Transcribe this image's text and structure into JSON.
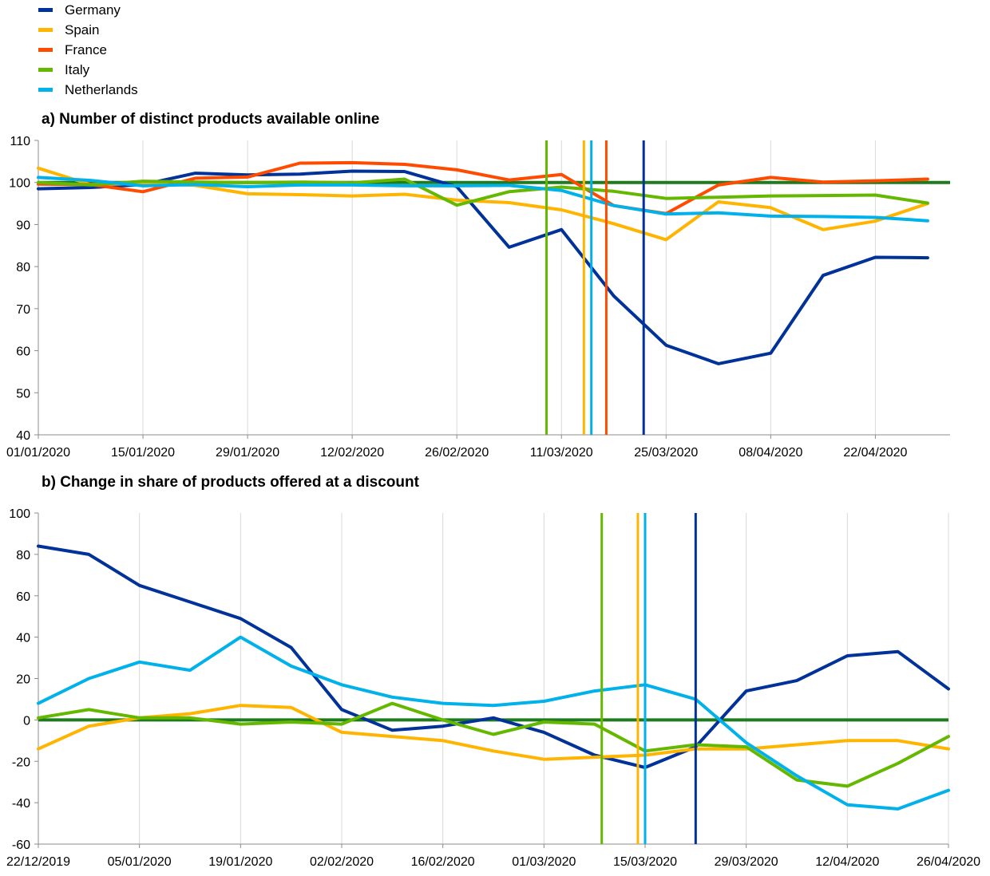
{
  "legend": [
    {
      "name": "Germany",
      "color": "#003299"
    },
    {
      "name": "Spain",
      "color": "#FFB400"
    },
    {
      "name": "France",
      "color": "#FF4B00"
    },
    {
      "name": "Italy",
      "color": "#65B800"
    },
    {
      "name": "Netherlands",
      "color": "#00B1EA"
    }
  ],
  "reference_color": "#1E7B1E",
  "chart_data": [
    {
      "type": "line",
      "title": "a) Number of distinct products available online",
      "xlabel": "",
      "ylabel": "",
      "ylim": [
        40,
        110
      ],
      "yticks": [
        40,
        50,
        60,
        70,
        80,
        90,
        100,
        110
      ],
      "xlim": [
        "2020-01-01",
        "2020-05-02"
      ],
      "xticks": [
        "01/01/2020",
        "15/01/2020",
        "29/01/2020",
        "12/02/2020",
        "26/02/2020",
        "11/03/2020",
        "25/03/2020",
        "08/04/2020",
        "22/04/2020"
      ],
      "grid": "vertical",
      "reference_line": 100,
      "x": [
        "2020-01-01",
        "2020-01-08",
        "2020-01-15",
        "2020-01-22",
        "2020-01-29",
        "2020-02-05",
        "2020-02-12",
        "2020-02-19",
        "2020-02-26",
        "2020-03-04",
        "2020-03-11",
        "2020-03-18",
        "2020-03-25",
        "2020-04-01",
        "2020-04-08",
        "2020-04-15",
        "2020-04-22",
        "2020-04-29"
      ],
      "series": [
        {
          "name": "Germany",
          "values": [
            98.5,
            98.8,
            99.5,
            102.2,
            101.8,
            102.0,
            102.7,
            102.6,
            99.0,
            84.6,
            88.8,
            73.0,
            61.3,
            56.9,
            59.4,
            77.9,
            82.2,
            82.1
          ]
        },
        {
          "name": "Spain",
          "values": [
            103.4,
            99.5,
            99.8,
            99.3,
            97.3,
            97.1,
            96.8,
            97.2,
            95.8,
            95.2,
            93.5,
            90.2,
            86.4,
            95.4,
            94.0,
            88.8,
            90.8,
            95.0
          ]
        },
        {
          "name": "France",
          "values": [
            99.6,
            99.5,
            97.8,
            101.0,
            101.3,
            104.6,
            104.7,
            104.3,
            103.0,
            100.6,
            101.9,
            94.5,
            92.6,
            99.4,
            101.2,
            100.1,
            100.4,
            100.8
          ]
        },
        {
          "name": "Italy",
          "values": [
            100.0,
            99.4,
            100.3,
            100.1,
            100.0,
            100.1,
            99.9,
            100.8,
            94.6,
            97.8,
            98.9,
            97.9,
            96.2,
            96.5,
            96.8,
            96.9,
            97.0,
            95.1
          ]
        },
        {
          "name": "Netherlands",
          "values": [
            101.2,
            100.5,
            99.2,
            99.5,
            99.0,
            99.4,
            99.4,
            99.2,
            99.2,
            99.3,
            98.1,
            94.5,
            92.5,
            92.8,
            92.0,
            91.9,
            91.7,
            90.9
          ]
        }
      ],
      "event_lines": [
        {
          "country": "Italy",
          "date": "2020-03-09"
        },
        {
          "country": "Spain",
          "date": "2020-03-14"
        },
        {
          "country": "Netherlands",
          "date": "2020-03-15"
        },
        {
          "country": "France",
          "date": "2020-03-17"
        },
        {
          "country": "Germany",
          "date": "2020-03-22"
        }
      ]
    },
    {
      "type": "line",
      "title": "b) Change in share of products offered at a discount",
      "xlabel": "",
      "ylabel": "",
      "ylim": [
        -60,
        100
      ],
      "yticks": [
        -60,
        -40,
        -20,
        0,
        20,
        40,
        60,
        80,
        100
      ],
      "xlim": [
        "2019-12-22",
        "2020-04-26"
      ],
      "xticks": [
        "22/12/2019",
        "05/01/2020",
        "19/01/2020",
        "02/02/2020",
        "16/02/2020",
        "01/03/2020",
        "15/03/2020",
        "29/03/2020",
        "12/04/2020",
        "26/04/2020"
      ],
      "grid": "vertical",
      "reference_line": 0,
      "x": [
        "2019-12-22",
        "2019-12-29",
        "2020-01-05",
        "2020-01-12",
        "2020-01-19",
        "2020-01-26",
        "2020-02-02",
        "2020-02-09",
        "2020-02-16",
        "2020-02-23",
        "2020-03-01",
        "2020-03-08",
        "2020-03-15",
        "2020-03-22",
        "2020-03-29",
        "2020-04-05",
        "2020-04-12",
        "2020-04-19",
        "2020-04-26"
      ],
      "series": [
        {
          "name": "Germany",
          "values": [
            84,
            80,
            65,
            57,
            49,
            35,
            5,
            -5,
            -3,
            1,
            -6,
            -17,
            -23,
            -13,
            14,
            19,
            31,
            33,
            15
          ]
        },
        {
          "name": "Spain",
          "values": [
            -14,
            -3,
            1,
            3,
            7,
            6,
            -6,
            -8,
            -10,
            -15,
            -19,
            -18,
            -17,
            -14,
            -14,
            -12,
            -10,
            -10,
            -14
          ]
        },
        {
          "name": "Italy",
          "values": [
            1,
            5,
            1,
            1,
            -2,
            -1,
            -2,
            8,
            0,
            -7,
            -1,
            -2,
            -15,
            -12,
            -13,
            -29,
            -32,
            -21,
            -8
          ]
        },
        {
          "name": "Netherlands",
          "values": [
            8,
            20,
            28,
            24,
            40,
            26,
            17,
            11,
            8,
            7,
            9,
            14,
            17,
            10,
            -11,
            -27,
            -41,
            -43,
            -34
          ]
        }
      ],
      "event_lines": [
        {
          "country": "Italy",
          "date": "2020-03-09"
        },
        {
          "country": "Spain",
          "date": "2020-03-14"
        },
        {
          "country": "Netherlands",
          "date": "2020-03-15"
        },
        {
          "country": "Germany",
          "date": "2020-03-22"
        }
      ]
    }
  ]
}
